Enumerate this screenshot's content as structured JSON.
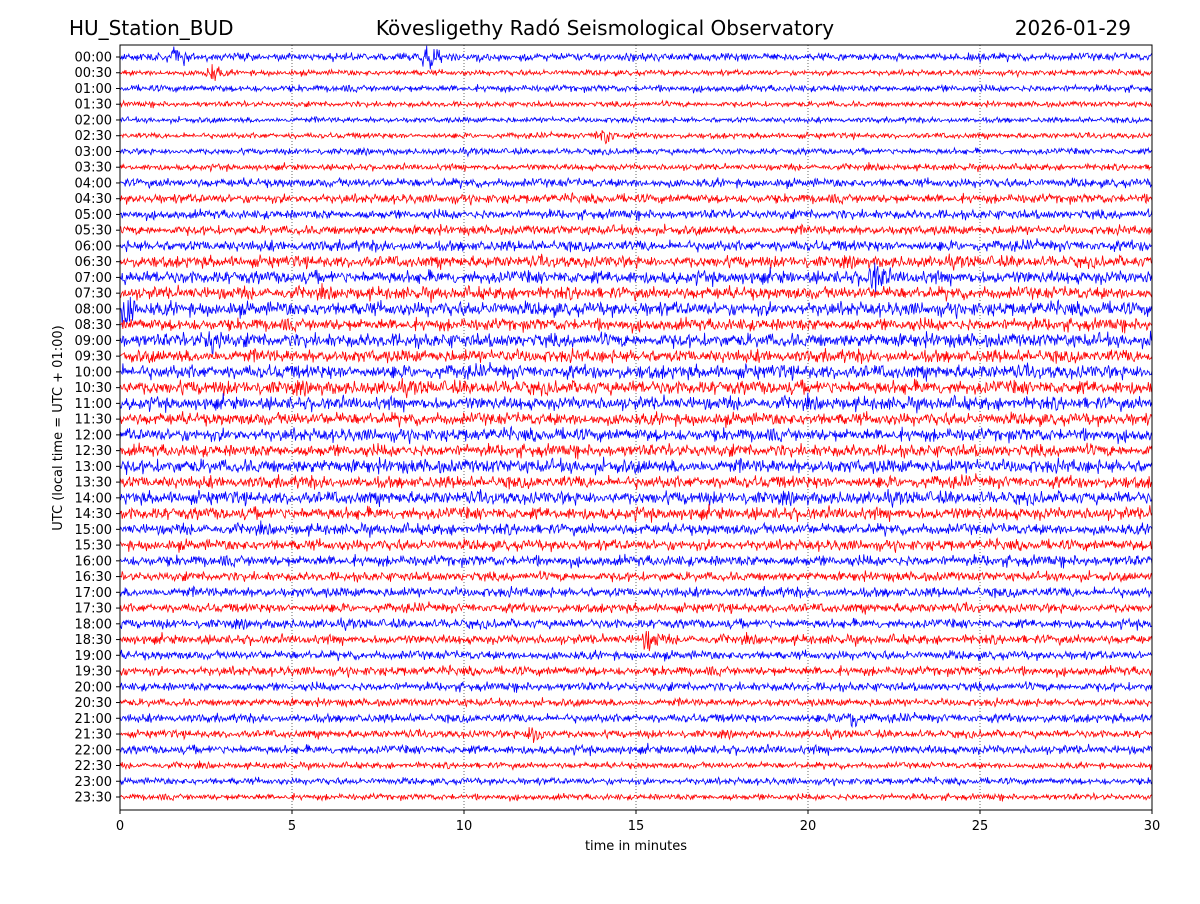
{
  "header": {
    "station": "HU_Station_BUD",
    "observatory": "Kövesligethy Radó Seismological Observatory",
    "date": "2026-01-29"
  },
  "chart_data": {
    "type": "line",
    "title": "Kövesligethy Radó Seismological Observatory",
    "xlabel": "time in minutes",
    "ylabel": "UTC (local time = UTC + 01:00)",
    "xlim": [
      0,
      30
    ],
    "xticks": [
      "0",
      "5",
      "10",
      "15",
      "20",
      "25",
      "30"
    ],
    "grid": "vertical dotted",
    "row_labels": [
      "00:00",
      "00:30",
      "01:00",
      "01:30",
      "02:00",
      "02:30",
      "03:00",
      "03:30",
      "04:00",
      "04:30",
      "05:00",
      "05:30",
      "06:00",
      "06:30",
      "07:00",
      "07:30",
      "08:00",
      "08:30",
      "09:00",
      "09:30",
      "10:00",
      "10:30",
      "11:00",
      "11:30",
      "12:00",
      "12:30",
      "13:00",
      "13:30",
      "14:00",
      "14:30",
      "15:00",
      "15:30",
      "16:00",
      "16:30",
      "17:00",
      "17:30",
      "18:00",
      "18:30",
      "19:00",
      "19:30",
      "20:00",
      "20:30",
      "21:00",
      "21:30",
      "22:00",
      "22:30",
      "23:00",
      "23:30"
    ],
    "colors": [
      "#0000ff",
      "#ff0000"
    ],
    "noise_level": [
      2.5,
      1.8,
      2.2,
      1.8,
      1.8,
      1.8,
      2,
      2,
      2.8,
      3,
      3,
      3,
      3.5,
      3.8,
      4.2,
      4,
      4.5,
      4,
      4.5,
      4.2,
      4.5,
      4.5,
      4.2,
      4,
      4.2,
      4,
      4.5,
      4,
      4.2,
      4,
      3.5,
      3.5,
      3.5,
      3,
      3.2,
      3,
      3,
      3,
      2.8,
      3,
      2.8,
      2.5,
      2.8,
      2.5,
      2.8,
      2,
      2.2,
      2
    ],
    "events": [
      {
        "row": 0,
        "minute": 9.0,
        "amp": 8
      },
      {
        "row": 0,
        "minute": 1.7,
        "amp": 5
      },
      {
        "row": 1,
        "minute": 2.7,
        "amp": 5
      },
      {
        "row": 5,
        "minute": 14.1,
        "amp": 6
      },
      {
        "row": 14,
        "minute": 22.0,
        "amp": 9
      },
      {
        "row": 16,
        "minute": 0.2,
        "amp": 8
      },
      {
        "row": 18,
        "minute": 2.7,
        "amp": 7
      },
      {
        "row": 37,
        "minute": 15.4,
        "amp": 6
      },
      {
        "row": 42,
        "minute": 21.2,
        "amp": 7
      },
      {
        "row": 43,
        "minute": 12.1,
        "amp": 7
      }
    ]
  }
}
